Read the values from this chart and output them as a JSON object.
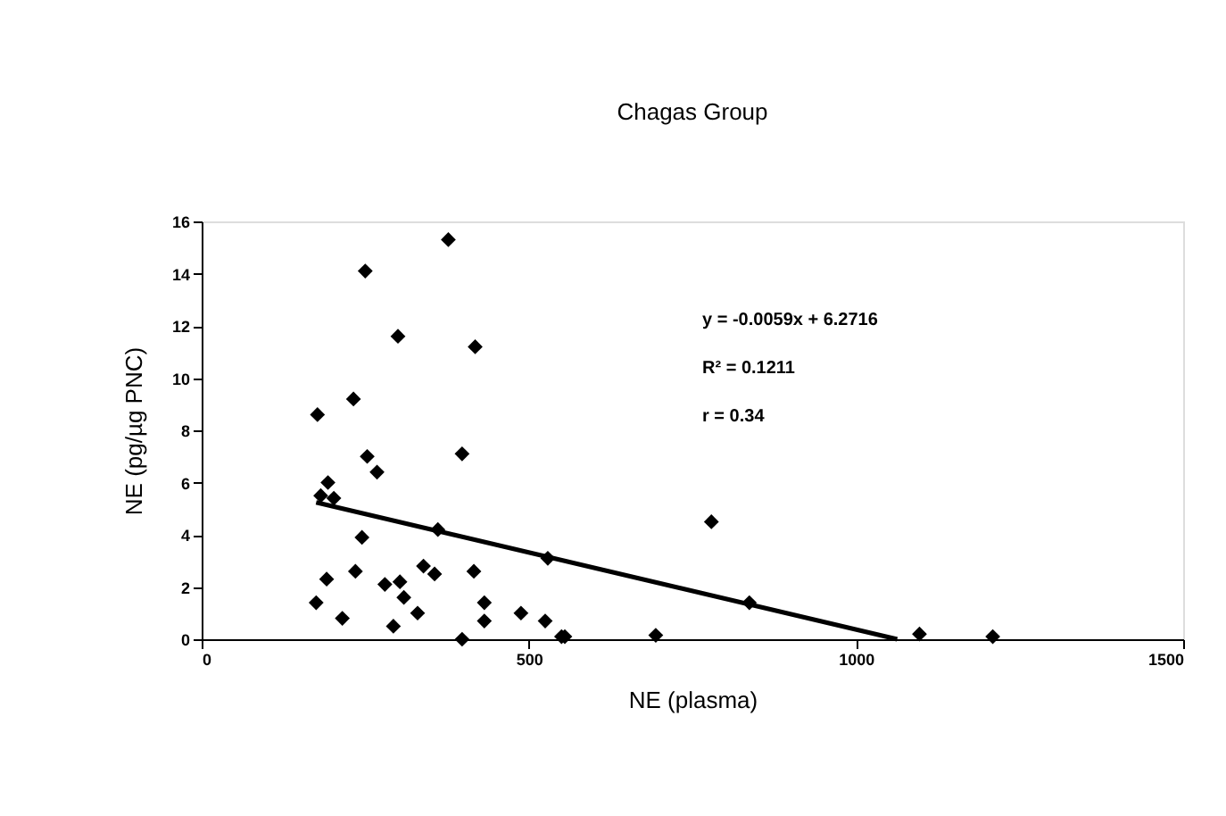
{
  "chart_data": {
    "type": "scatter",
    "title": "Chagas Group",
    "xlabel": "NE (plasma)",
    "ylabel": "NE (pg/µg PNC)",
    "xlim": [
      0,
      1500
    ],
    "xticks": [
      0,
      500,
      1000,
      1500
    ],
    "ylim": [
      0,
      16
    ],
    "yticks": [
      0,
      2,
      4,
      6,
      8,
      10,
      12,
      14,
      16
    ],
    "grid": false,
    "annotations": [
      "y = -0.0059x + 6.2716",
      "R² = 0.1211",
      "r = 0.34"
    ],
    "series": [
      {
        "color": "#000000",
        "marker": "diamond",
        "x": [
          377,
          250,
          300,
          418,
          177,
          232,
          398,
          253,
          268,
          193,
          182,
          202,
          245,
          361,
          529,
          191,
          235,
          280,
          303,
          339,
          356,
          416,
          309,
          175,
          215,
          293,
          330,
          432,
          432,
          488,
          525,
          550,
          398,
          555,
          779,
          837,
          694,
          1097,
          1209
        ],
        "values": [
          15.3,
          14.1,
          11.6,
          11.2,
          8.6,
          9.2,
          7.1,
          7.0,
          6.4,
          6.0,
          5.5,
          5.4,
          3.9,
          4.2,
          3.1,
          2.3,
          2.6,
          2.1,
          2.2,
          2.8,
          2.5,
          2.6,
          1.6,
          1.4,
          0.8,
          0.5,
          1.0,
          1.4,
          0.7,
          1.0,
          0.7,
          0.1,
          0.0,
          0.1,
          4.5,
          1.4,
          0.15,
          0.2,
          0.1
        ]
      },
      {
        "color": "#000000",
        "type": "line",
        "x": [
          175,
          1063
        ],
        "values": [
          5.24,
          0
        ]
      }
    ]
  }
}
